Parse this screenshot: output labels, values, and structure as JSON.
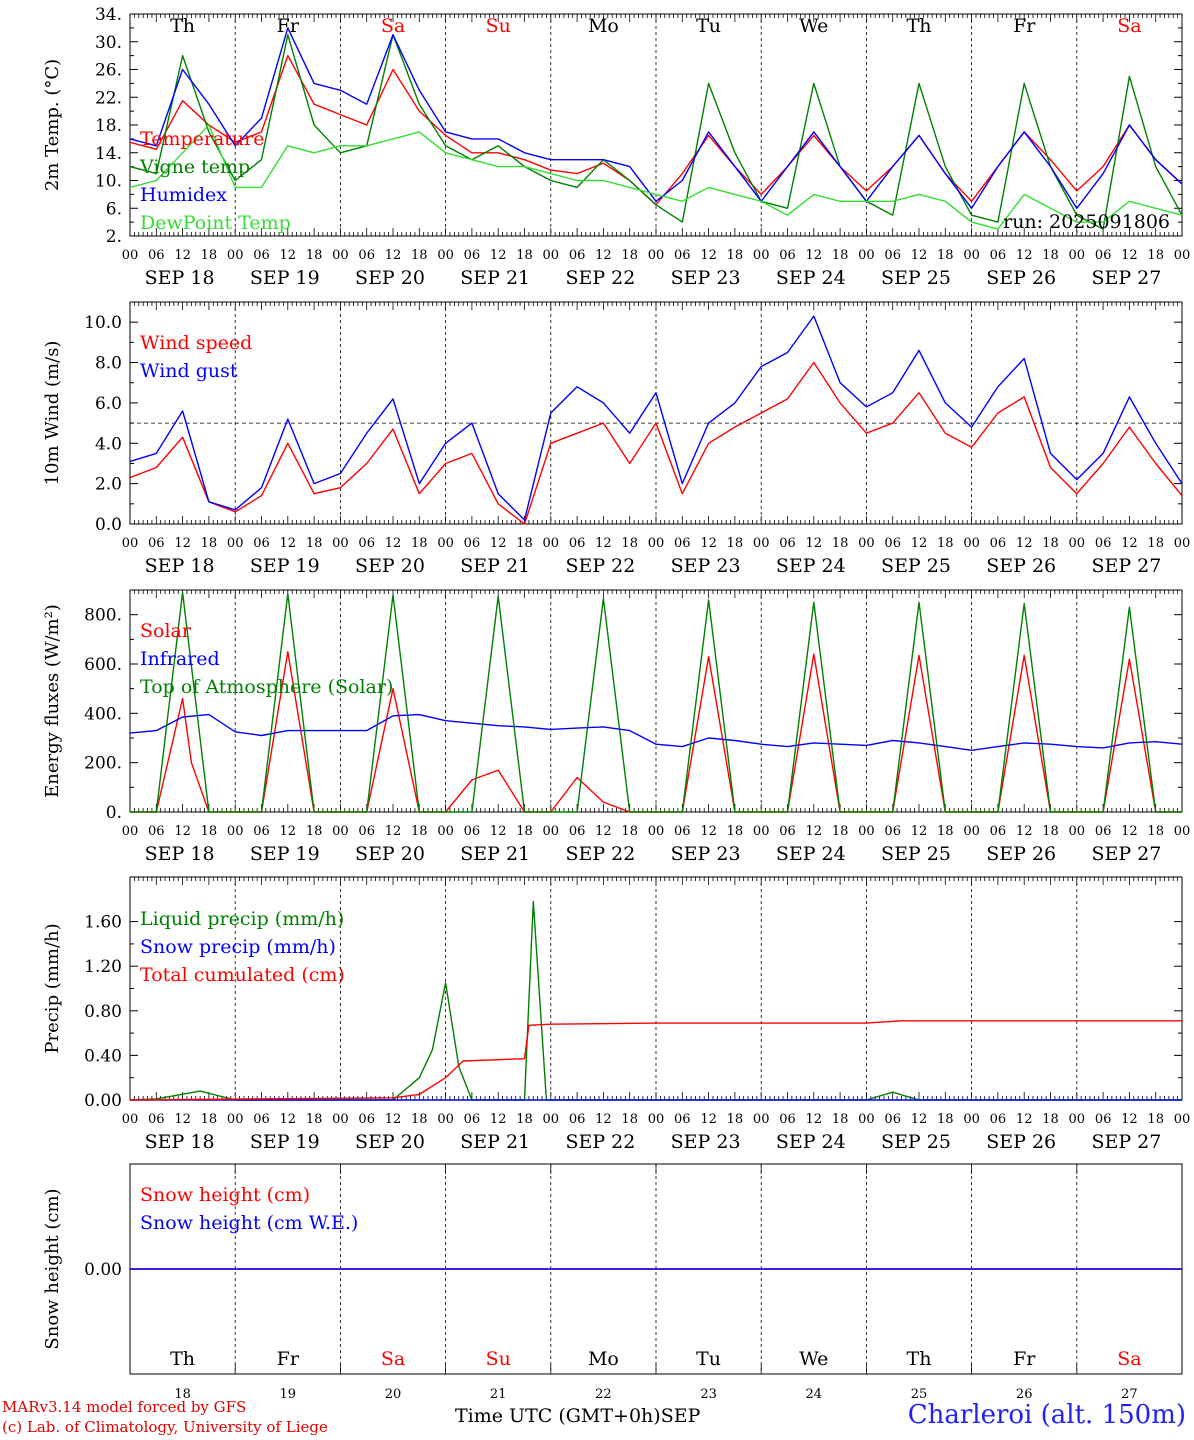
{
  "colors": {
    "red": "#ff0000",
    "green": "#008000",
    "blue": "#0000ff",
    "lightgreen": "#33dd33",
    "black": "#000000"
  },
  "x_axis": {
    "hour_labels": [
      "00",
      "06",
      "12",
      "18"
    ],
    "dates": [
      "SEP 18",
      "SEP 19",
      "SEP 20",
      "SEP 21",
      "SEP 22",
      "SEP 23",
      "SEP 24",
      "SEP 25",
      "SEP 26",
      "SEP 27"
    ],
    "date_numbers": [
      "18",
      "19",
      "20",
      "21",
      "22",
      "23",
      "24",
      "25",
      "26",
      "27"
    ],
    "weekdays": [
      {
        "label": "Th",
        "weekend": false
      },
      {
        "label": "Fr",
        "weekend": false
      },
      {
        "label": "Sa",
        "weekend": true
      },
      {
        "label": "Su",
        "weekend": true
      },
      {
        "label": "Mo",
        "weekend": false
      },
      {
        "label": "Tu",
        "weekend": false
      },
      {
        "label": "We",
        "weekend": false
      },
      {
        "label": "Th",
        "weekend": false
      },
      {
        "label": "Fr",
        "weekend": false
      },
      {
        "label": "Sa",
        "weekend": true
      }
    ],
    "days": 10
  },
  "footer": {
    "model": "MARv3.14 model forced by GFS",
    "copyright": "(c) Lab. of Climatology, University of Liege",
    "xlabel": "Time UTC (GMT+0h)",
    "month": "SEP",
    "station": "Charleroi (alt. 150m)"
  },
  "chart_data": [
    {
      "type": "line",
      "title": "2m Temperature",
      "ylabel": "2m Temp. (°C)",
      "ylim": [
        2,
        34
      ],
      "yticks": [
        "34.",
        "30.",
        "26.",
        "22.",
        "18.",
        "14.",
        "10.",
        "6.",
        "2."
      ],
      "ytick_values": [
        34,
        30,
        26,
        22,
        18,
        14,
        10,
        6,
        2
      ],
      "run_label": "run: 2025091806",
      "series": [
        {
          "name": "Temperature",
          "color": "red",
          "x": [
            0,
            6,
            12,
            18,
            24,
            30,
            36,
            42,
            48,
            54,
            60,
            66,
            72,
            78,
            84,
            90,
            96,
            102,
            108,
            114,
            120,
            126,
            132,
            138,
            144,
            150,
            156,
            162,
            168,
            174,
            180,
            186,
            192,
            198,
            204,
            210,
            216,
            222,
            228,
            234,
            240
          ],
          "values": [
            15.5,
            14.5,
            21.5,
            18,
            15.5,
            17,
            28,
            21,
            19.5,
            18,
            26,
            20,
            16.5,
            14,
            14,
            13,
            11.5,
            11,
            12.5,
            10,
            6.5,
            11,
            16.5,
            12,
            8,
            12,
            16.5,
            12,
            8.5,
            12,
            16.5,
            11,
            7,
            12,
            17,
            13,
            8.5,
            12,
            18,
            13,
            9.5
          ]
        },
        {
          "name": "Vigne temp",
          "color": "green",
          "x": [
            0,
            6,
            12,
            18,
            24,
            30,
            36,
            42,
            48,
            54,
            60,
            66,
            72,
            78,
            84,
            90,
            96,
            102,
            108,
            114,
            120,
            126,
            132,
            138,
            144,
            150,
            156,
            162,
            168,
            174,
            180,
            186,
            192,
            198,
            204,
            210,
            216,
            222,
            228,
            234,
            240
          ],
          "values": [
            12,
            11,
            28,
            17,
            10,
            13,
            31,
            18,
            14,
            15,
            31,
            21,
            15,
            13,
            15,
            12,
            10,
            9,
            13,
            10,
            6.5,
            4,
            24,
            14,
            7,
            6,
            24,
            12,
            7,
            5,
            24,
            12,
            5,
            4,
            24,
            12,
            5,
            3,
            25,
            12,
            5
          ]
        },
        {
          "name": "Humidex",
          "color": "blue",
          "x": [
            0,
            6,
            12,
            18,
            24,
            30,
            36,
            42,
            48,
            54,
            60,
            66,
            72,
            78,
            84,
            90,
            96,
            102,
            108,
            114,
            120,
            126,
            132,
            138,
            144,
            150,
            156,
            162,
            168,
            174,
            180,
            186,
            192,
            198,
            204,
            210,
            216,
            222,
            228,
            234,
            240
          ],
          "values": [
            16,
            15,
            26,
            21,
            15,
            19,
            32,
            24,
            23,
            21,
            31,
            23,
            17,
            16,
            16,
            14,
            13,
            13,
            13,
            12,
            7,
            10,
            17,
            12,
            7,
            12,
            17,
            12,
            7,
            12,
            16.5,
            11,
            6,
            12,
            17,
            12,
            6,
            11,
            18,
            13,
            9.5
          ]
        },
        {
          "name": "DewPoint Temp",
          "color": "lightgreen",
          "x": [
            0,
            6,
            12,
            18,
            24,
            30,
            36,
            42,
            48,
            54,
            60,
            66,
            72,
            78,
            84,
            90,
            96,
            102,
            108,
            114,
            120,
            126,
            132,
            138,
            144,
            150,
            156,
            162,
            168,
            174,
            180,
            186,
            192,
            198,
            204,
            210,
            216,
            222,
            228,
            234,
            240
          ],
          "values": [
            9,
            10,
            14,
            18,
            9,
            9,
            15,
            14,
            15,
            15,
            16,
            17,
            14,
            13,
            12,
            12,
            11,
            10,
            10,
            9,
            8,
            7,
            9,
            8,
            7,
            5,
            8,
            7,
            7,
            7,
            8,
            7,
            4,
            3,
            8,
            6,
            4,
            4,
            7,
            6,
            5
          ]
        }
      ]
    },
    {
      "type": "line",
      "title": "10m Wind",
      "ylabel": "10m Wind (m/s)",
      "ylim": [
        0,
        11
      ],
      "yticks": [
        "10.0",
        "8.0",
        "6.0",
        "4.0",
        "2.0",
        "0.0"
      ],
      "ytick_values": [
        10,
        8,
        6,
        4,
        2,
        0
      ],
      "reference_line": 5,
      "series": [
        {
          "name": "Wind speed",
          "color": "red",
          "x": [
            0,
            6,
            12,
            18,
            24,
            30,
            36,
            42,
            48,
            54,
            60,
            66,
            72,
            78,
            84,
            90,
            96,
            102,
            108,
            114,
            120,
            126,
            132,
            138,
            144,
            150,
            156,
            162,
            168,
            174,
            180,
            186,
            192,
            198,
            204,
            210,
            216,
            222,
            228,
            234,
            240
          ],
          "values": [
            2.3,
            2.8,
            4.3,
            1.1,
            0.6,
            1.4,
            4,
            1.5,
            1.8,
            3,
            4.7,
            1.5,
            3,
            3.5,
            1,
            0,
            4,
            4.5,
            5,
            3,
            5,
            1.5,
            4,
            4.8,
            5.5,
            6.2,
            8,
            6,
            4.5,
            5,
            6.5,
            4.5,
            3.8,
            5.5,
            6.3,
            2.8,
            1.5,
            3,
            4.8,
            3,
            1.4
          ]
        },
        {
          "name": "Wind gust",
          "color": "blue",
          "x": [
            0,
            6,
            12,
            18,
            24,
            30,
            36,
            42,
            48,
            54,
            60,
            66,
            72,
            78,
            84,
            90,
            96,
            102,
            108,
            114,
            120,
            126,
            132,
            138,
            144,
            150,
            156,
            162,
            168,
            174,
            180,
            186,
            192,
            198,
            204,
            210,
            216,
            222,
            228,
            234,
            240
          ],
          "values": [
            3.1,
            3.5,
            5.6,
            1.1,
            0.7,
            1.8,
            5.2,
            2,
            2.5,
            4.5,
            6.2,
            2,
            4,
            5,
            1.5,
            0.2,
            5.5,
            6.8,
            6,
            4.5,
            6.5,
            2,
            5,
            6,
            7.8,
            8.5,
            10.3,
            7,
            5.8,
            6.5,
            8.6,
            6,
            4.8,
            6.8,
            8.2,
            3.5,
            2.2,
            3.5,
            6.3,
            4,
            2
          ]
        }
      ]
    },
    {
      "type": "line",
      "title": "Energy fluxes",
      "ylabel": "Energy fluxes (W/m²)",
      "ylim": [
        0,
        900
      ],
      "yticks": [
        "800.",
        "600.",
        "400.",
        "200.",
        "0."
      ],
      "ytick_values": [
        800,
        600,
        400,
        200,
        0
      ],
      "series": [
        {
          "name": "Solar",
          "color": "red",
          "x": [
            0,
            6,
            12,
            14,
            18,
            24,
            30,
            36,
            42,
            48,
            54,
            60,
            66,
            72,
            78,
            84,
            90,
            96,
            102,
            108,
            114,
            120,
            126,
            132,
            138,
            144,
            150,
            156,
            162,
            168,
            174,
            180,
            186,
            192,
            198,
            204,
            210,
            216,
            222,
            228,
            234,
            240
          ],
          "values": [
            0,
            0,
            460,
            200,
            0,
            0,
            0,
            650,
            0,
            0,
            0,
            500,
            0,
            0,
            130,
            170,
            0,
            0,
            140,
            40,
            0,
            0,
            0,
            630,
            0,
            0,
            0,
            640,
            0,
            0,
            0,
            635,
            0,
            0,
            0,
            635,
            0,
            0,
            0,
            620,
            0,
            0
          ]
        },
        {
          "name": "Infrared",
          "color": "blue",
          "x": [
            0,
            6,
            12,
            18,
            24,
            30,
            36,
            42,
            48,
            54,
            60,
            66,
            72,
            78,
            84,
            90,
            96,
            102,
            108,
            114,
            120,
            126,
            132,
            138,
            144,
            150,
            156,
            162,
            168,
            174,
            180,
            186,
            192,
            198,
            204,
            210,
            216,
            222,
            228,
            234,
            240
          ],
          "values": [
            320,
            330,
            385,
            395,
            325,
            310,
            330,
            330,
            330,
            330,
            390,
            395,
            370,
            360,
            350,
            345,
            335,
            340,
            345,
            330,
            275,
            265,
            300,
            290,
            275,
            265,
            280,
            275,
            270,
            290,
            280,
            265,
            250,
            265,
            280,
            275,
            265,
            260,
            280,
            285,
            275
          ]
        },
        {
          "name": "Top of Atmosphere (Solar)",
          "color": "green",
          "x": [
            0,
            6,
            12,
            18,
            24,
            30,
            36,
            42,
            48,
            54,
            60,
            66,
            72,
            78,
            84,
            90,
            96,
            102,
            108,
            114,
            120,
            126,
            132,
            138,
            144,
            150,
            156,
            162,
            168,
            174,
            180,
            186,
            192,
            198,
            204,
            210,
            216,
            222,
            228,
            234,
            240
          ],
          "values": [
            0,
            0,
            890,
            0,
            0,
            0,
            885,
            0,
            0,
            0,
            880,
            0,
            0,
            0,
            875,
            0,
            0,
            0,
            865,
            0,
            0,
            0,
            860,
            0,
            0,
            0,
            850,
            0,
            0,
            0,
            850,
            0,
            0,
            0,
            845,
            0,
            0,
            0,
            830,
            0,
            0
          ]
        }
      ]
    },
    {
      "type": "line",
      "title": "Precip",
      "ylabel": "Precip (mm/h)",
      "ylim": [
        0,
        2.0
      ],
      "yticks": [
        "1.60",
        "1.20",
        "0.80",
        "0.40",
        "0.00"
      ],
      "ytick_values": [
        1.6,
        1.2,
        0.8,
        0.4,
        0
      ],
      "series": [
        {
          "name": "Liquid precip (mm/h)",
          "color": "green",
          "x": [
            0,
            6,
            16,
            24,
            60,
            66,
            69,
            72,
            75,
            78,
            84,
            90,
            92,
            95,
            96,
            102,
            168,
            174,
            180,
            186,
            192,
            240
          ],
          "values": [
            0,
            0.01,
            0.08,
            0,
            0,
            0.2,
            0.45,
            1.05,
            0.3,
            0,
            0,
            0,
            1.78,
            0,
            0,
            0,
            0,
            0.07,
            0,
            0,
            0,
            0
          ]
        },
        {
          "name": "Snow precip (mm/h)",
          "color": "blue",
          "x": [
            0,
            240
          ],
          "values": [
            0,
            0
          ]
        },
        {
          "name": "Total cumulated (cm)",
          "color": "red",
          "x": [
            0,
            60,
            66,
            72,
            76,
            90,
            91,
            96,
            120,
            168,
            176,
            240
          ],
          "values": [
            0,
            0.02,
            0.05,
            0.2,
            0.35,
            0.37,
            0.67,
            0.68,
            0.69,
            0.69,
            0.71,
            0.71
          ]
        }
      ]
    },
    {
      "type": "line",
      "title": "Snow height",
      "ylabel": "Snow height (cm)",
      "ylim": [
        -1,
        1
      ],
      "yticks": [
        "0.00"
      ],
      "ytick_values": [
        0
      ],
      "series": [
        {
          "name": "Snow height (cm)",
          "color": "red",
          "x": [
            0,
            240
          ],
          "values": [
            0,
            0
          ]
        },
        {
          "name": "Snow height (cm W.E.)",
          "color": "blue",
          "x": [
            0,
            240
          ],
          "values": [
            0,
            0
          ]
        }
      ]
    }
  ]
}
